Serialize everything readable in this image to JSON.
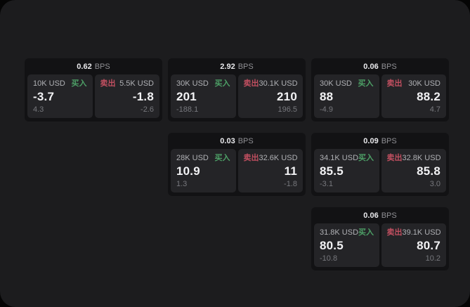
{
  "labels": {
    "buy": "买入",
    "sell": "卖出",
    "bps_unit": "BPS"
  },
  "colors": {
    "buy_green": "#4d9f66",
    "sell_red": "#c14f60",
    "page_bg": "#1c1c1e",
    "card_bg": "#121214",
    "panel_bg": "#242427"
  },
  "cards": [
    {
      "bps": "0.62",
      "grid": {
        "row": 1,
        "col": 1
      },
      "buy": {
        "amount": "10K USD",
        "price": "-3.7",
        "delta": "4.3"
      },
      "sell": {
        "amount": "5.5K USD",
        "price": "-1.8",
        "delta": "-2.6"
      }
    },
    {
      "bps": "2.92",
      "grid": {
        "row": 1,
        "col": 2
      },
      "buy": {
        "amount": "30K USD",
        "price": "201",
        "delta": "-188.1"
      },
      "sell": {
        "amount": "30.1K USD",
        "price": "210",
        "delta": "196.5"
      }
    },
    {
      "bps": "0.06",
      "grid": {
        "row": 1,
        "col": 3
      },
      "buy": {
        "amount": "30K USD",
        "price": "88",
        "delta": "-4.9"
      },
      "sell": {
        "amount": "30K USD",
        "price": "88.2",
        "delta": "4.7"
      }
    },
    {
      "bps": "0.03",
      "grid": {
        "row": 2,
        "col": 2
      },
      "buy": {
        "amount": "28K USD",
        "price": "10.9",
        "delta": "1.3"
      },
      "sell": {
        "amount": "32.6K USD",
        "price": "11",
        "delta": "-1.8"
      }
    },
    {
      "bps": "0.09",
      "grid": {
        "row": 2,
        "col": 3
      },
      "buy": {
        "amount": "34.1K USD",
        "price": "85.5",
        "delta": "-3.1"
      },
      "sell": {
        "amount": "32.8K USD",
        "price": "85.8",
        "delta": "3.0"
      }
    },
    {
      "bps": "0.06",
      "grid": {
        "row": 3,
        "col": 3
      },
      "buy": {
        "amount": "31.8K USD",
        "price": "80.5",
        "delta": "-10.8"
      },
      "sell": {
        "amount": "39.1K USD",
        "price": "80.7",
        "delta": "10.2"
      }
    }
  ]
}
